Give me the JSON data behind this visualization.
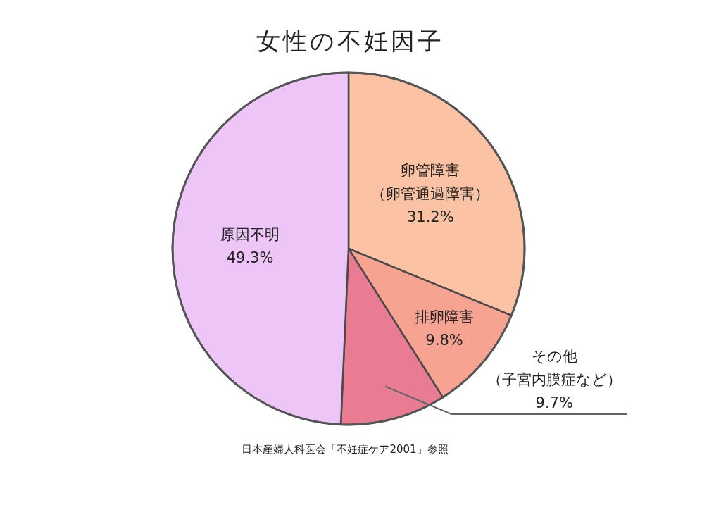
{
  "chart_data": {
    "type": "pie",
    "title": "女性の不妊因子",
    "categories": [
      "卵管障害（卵管通過障害）",
      "排卵障害",
      "その他（子宮内膜症など）",
      "原因不明"
    ],
    "values": [
      31.2,
      9.8,
      9.7,
      49.3
    ],
    "value_labels": [
      "31.2%",
      "9.8%",
      "9.7%",
      "49.3%"
    ],
    "colors": [
      "#fbc3a4",
      "#f6a392",
      "#e97b93",
      "#edc6f7"
    ],
    "annotations": [
      "日本産婦人科医会「不妊症ケア2001」参照"
    ]
  }
}
